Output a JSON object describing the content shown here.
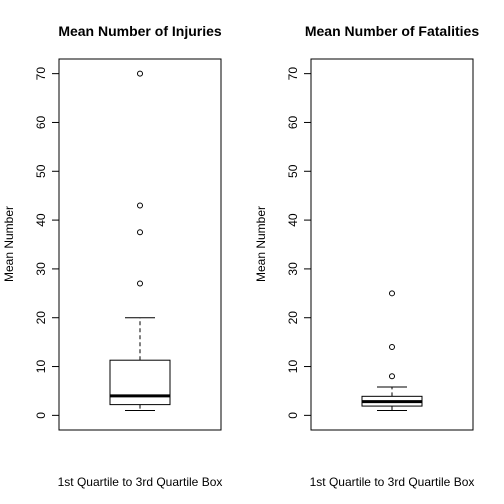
{
  "chart_data": [
    {
      "type": "boxplot",
      "title": "Mean Number of Injuries",
      "xlabel": "1st Quartile to 3rd Quartile Box",
      "ylabel": "Mean Number",
      "ylim": [
        -3,
        73
      ],
      "yticks": [
        0,
        10,
        20,
        30,
        40,
        50,
        60,
        70
      ],
      "grid": false,
      "box": {
        "whisker_low": 1,
        "q1": 2.2,
        "median": 4,
        "q3": 11.3,
        "whisker_high": 20
      },
      "outliers": [
        27,
        37.5,
        43,
        70
      ],
      "colors": {
        "stroke": "#000000",
        "background": "#ffffff"
      }
    },
    {
      "type": "boxplot",
      "title": "Mean Number of Fatalities",
      "xlabel": "1st Quartile to 3rd Quartile Box",
      "ylabel": "Mean Number",
      "ylim": [
        -3,
        73
      ],
      "yticks": [
        0,
        10,
        20,
        30,
        40,
        50,
        60,
        70
      ],
      "grid": false,
      "box": {
        "whisker_low": 1,
        "q1": 1.9,
        "median": 2.8,
        "q3": 3.9,
        "whisker_high": 5.8
      },
      "outliers": [
        8,
        14,
        25
      ],
      "colors": {
        "stroke": "#000000",
        "background": "#ffffff"
      }
    }
  ]
}
